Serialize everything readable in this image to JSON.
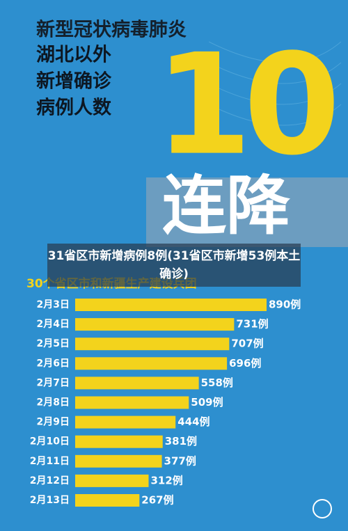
{
  "chart_data": {
    "type": "bar",
    "title": "新型冠状病毒肺炎",
    "headline_lines": [
      "湖北以外",
      "新增确诊",
      "病例人数"
    ],
    "big_text": "10",
    "banner": "连降",
    "subtitle": "30个省区市和新疆生产建设兵团",
    "caption": "31省区市新增病例8例(31省区市新增53例本土确诊)",
    "categories": [
      "2月3日",
      "2月4日",
      "2月5日",
      "2月6日",
      "2月7日",
      "2月8日",
      "2月9日",
      "2月10日",
      "2月11日",
      "2月12日",
      "2月13日"
    ],
    "values": [
      890,
      731,
      707,
      696,
      558,
      509,
      444,
      381,
      377,
      312,
      267
    ],
    "value_labels": [
      "890例",
      "731例",
      "707例",
      "696例",
      "558例",
      "509例",
      "444例",
      "381例",
      "377例",
      "312例",
      "267例"
    ],
    "color": "#f3d31c"
  }
}
